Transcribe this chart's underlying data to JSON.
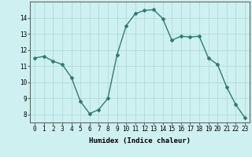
{
  "x": [
    0,
    1,
    2,
    3,
    4,
    5,
    6,
    7,
    8,
    9,
    10,
    11,
    12,
    13,
    14,
    15,
    16,
    17,
    18,
    19,
    20,
    21,
    22,
    23
  ],
  "y": [
    11.5,
    11.6,
    11.3,
    11.1,
    10.3,
    8.8,
    8.05,
    8.3,
    9.0,
    11.7,
    13.5,
    14.25,
    14.45,
    14.5,
    13.95,
    12.6,
    12.85,
    12.8,
    12.85,
    11.5,
    11.1,
    9.7,
    8.6,
    7.8
  ],
  "line_color": "#2e7d6e",
  "marker": "D",
  "marker_size": 2,
  "line_width": 1.0,
  "bg_color": "#cff0f0",
  "grid_color": "#a8d8d8",
  "xlabel": "Humidex (Indice chaleur)",
  "xlim": [
    -0.5,
    23.5
  ],
  "ylim": [
    7.5,
    15.0
  ],
  "yticks": [
    8,
    9,
    10,
    11,
    12,
    13,
    14
  ],
  "xticks": [
    0,
    1,
    2,
    3,
    4,
    5,
    6,
    7,
    8,
    9,
    10,
    11,
    12,
    13,
    14,
    15,
    16,
    17,
    18,
    19,
    20,
    21,
    22,
    23
  ],
  "label_fontsize": 6.5,
  "tick_fontsize": 5.5
}
